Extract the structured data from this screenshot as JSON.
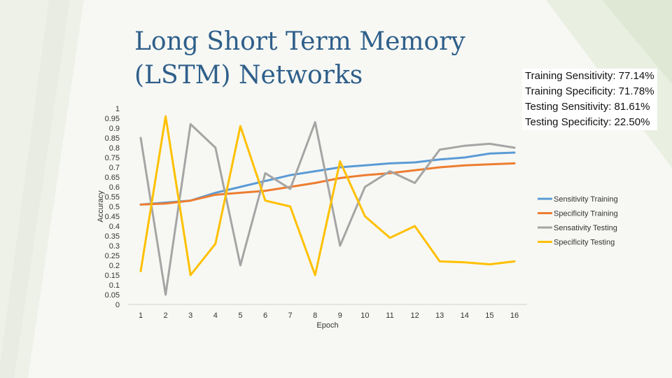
{
  "slide": {
    "title": "Long Short Term Memory (LSTM) Networks"
  },
  "stats": [
    "Training Sensitivity: 77.14%",
    "Training Specificity: 71.78%",
    "Testing Sensitivity: 81.61%",
    "Testing Specificity: 22.50%"
  ],
  "chart_data": {
    "type": "line",
    "xlabel": "Epoch",
    "ylabel": "Accuracy",
    "ylim": [
      0,
      1
    ],
    "yticks": [
      "0",
      "0.05",
      "0.1",
      "0.15",
      "0.2",
      "0.25",
      "0.3",
      "0.35",
      "0.4",
      "0.45",
      "0.5",
      "0.55",
      "0.6",
      "0.65",
      "0.7",
      "0.75",
      "0.8",
      "0.85",
      "0.9",
      "0.95",
      "1"
    ],
    "x": [
      1,
      2,
      3,
      4,
      5,
      6,
      7,
      8,
      9,
      10,
      11,
      12,
      13,
      14,
      15,
      16
    ],
    "legend_position": "right",
    "grid": false,
    "series": [
      {
        "name": "Sensitivity Training",
        "color": "#5b9bd5",
        "values": [
          0.51,
          0.52,
          0.53,
          0.57,
          0.6,
          0.63,
          0.66,
          0.68,
          0.7,
          0.71,
          0.72,
          0.725,
          0.74,
          0.75,
          0.77,
          0.775
        ]
      },
      {
        "name": "Specificity Training",
        "color": "#ed7d31",
        "values": [
          0.51,
          0.515,
          0.53,
          0.56,
          0.57,
          0.58,
          0.6,
          0.62,
          0.645,
          0.66,
          0.67,
          0.685,
          0.7,
          0.71,
          0.715,
          0.72
        ]
      },
      {
        "name": "Sensativity Testing",
        "color": "#a5a5a5",
        "values": [
          0.85,
          0.05,
          0.92,
          0.8,
          0.2,
          0.67,
          0.59,
          0.93,
          0.3,
          0.6,
          0.68,
          0.62,
          0.79,
          0.81,
          0.82,
          0.8
        ]
      },
      {
        "name": "Specificity Testing",
        "color": "#ffc000",
        "values": [
          0.17,
          0.96,
          0.15,
          0.31,
          0.91,
          0.53,
          0.5,
          0.15,
          0.73,
          0.45,
          0.34,
          0.4,
          0.22,
          0.215,
          0.205,
          0.22
        ]
      }
    ]
  }
}
